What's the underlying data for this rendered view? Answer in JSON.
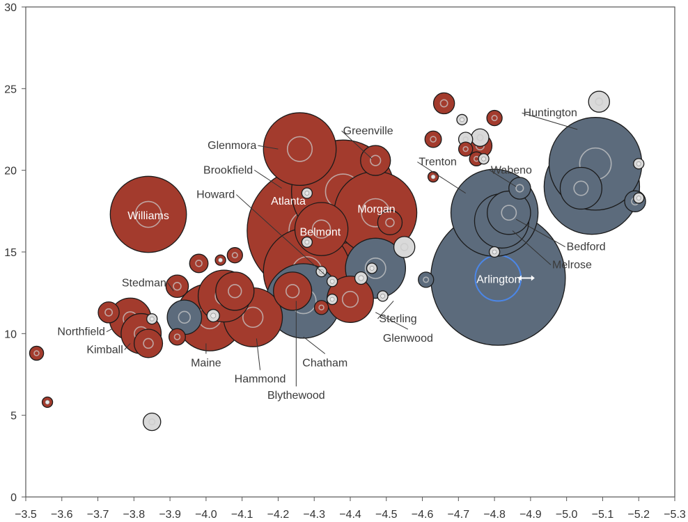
{
  "chart_data": {
    "type": "scatter",
    "subtype": "bubble",
    "title": "",
    "xlabel": "",
    "ylabel": "",
    "xlim": [
      -3.5,
      -5.3
    ],
    "ylim": [
      0,
      30
    ],
    "x_reversed": true,
    "x_ticks": [
      -3.5,
      -3.6,
      -3.7,
      -3.8,
      -3.9,
      -4.0,
      -4.1,
      -4.2,
      -4.3,
      -4.4,
      -4.5,
      -4.6,
      -4.7,
      -4.8,
      -4.9,
      -5.0,
      -5.1,
      -5.2,
      -5.3
    ],
    "x_tick_labels": [
      "−3.5",
      "−3.6",
      "−3.7",
      "−3.8",
      "−3.9",
      "−4.0",
      "−4.1",
      "−4.2",
      "−4.3",
      "−4.4",
      "−4.5",
      "−4.6",
      "−4.7",
      "−4.8",
      "−4.9",
      "−5.0",
      "−5.1",
      "−5.2",
      "−5.3"
    ],
    "y_ticks": [
      0,
      5,
      10,
      15,
      20,
      25,
      30
    ],
    "y_tick_labels": [
      "0",
      "5",
      "10",
      "15",
      "20",
      "25",
      "30"
    ],
    "grid": false,
    "legend": "none",
    "colors": {
      "red": "#a33b2d",
      "slate": "#5c6b7c",
      "light": "#d9d9d9",
      "highlight_ring": "#4a86e8"
    },
    "points": [
      {
        "name": "Atlanta",
        "x": -4.29,
        "y": 16.3,
        "size": 6.2,
        "color": "red"
      },
      {
        "name": "Greenville",
        "x": -4.38,
        "y": 18.7,
        "size": 4.0,
        "color": "red"
      },
      {
        "name": "Glenmora",
        "x": -4.26,
        "y": 21.3,
        "size": 1.9,
        "color": "red"
      },
      {
        "name": "Morgan",
        "x": -4.47,
        "y": 17.4,
        "size": 2.5,
        "color": "red"
      },
      {
        "name": "Brookfield",
        "x": -4.28,
        "y": 18.6,
        "size": 0.01,
        "color": "light"
      },
      {
        "name": "Belmont",
        "x": -4.32,
        "y": 16.4,
        "size": 0.95,
        "color": "red"
      },
      {
        "name": "Howard",
        "x": -4.28,
        "y": 13.8,
        "size": 2.8,
        "color": "red"
      },
      {
        "name": "Williams",
        "x": -3.84,
        "y": 17.3,
        "size": 2.1,
        "color": "red"
      },
      {
        "name": "Stedman",
        "x": -3.92,
        "y": 12.9,
        "size": 0.12,
        "color": "red"
      },
      {
        "name": "Northfield",
        "x": -3.79,
        "y": 10.9,
        "size": 0.55,
        "color": "red"
      },
      {
        "name": "Kimball",
        "x": -3.82,
        "y": 10.0,
        "size": 0.5,
        "color": "red"
      },
      {
        "name": "Maine",
        "x": -4.01,
        "y": 11.0,
        "size": 1.6,
        "color": "red"
      },
      {
        "name": "Hammond",
        "x": -4.13,
        "y": 11.0,
        "size": 1.2,
        "color": "red"
      },
      {
        "name": "Blythewood",
        "x": -4.24,
        "y": 12.6,
        "size": 0.45,
        "color": "red"
      },
      {
        "name": "Chatham",
        "x": -4.27,
        "y": 12.0,
        "size": 2.0,
        "color": "slate"
      },
      {
        "name": "Glenwood",
        "x": -4.4,
        "y": 12.1,
        "size": 0.7,
        "color": "red"
      },
      {
        "name": "Sterling",
        "x": -4.47,
        "y": 14.0,
        "size": 1.25,
        "color": "slate"
      },
      {
        "name": "Trenton",
        "x": -4.8,
        "y": 17.4,
        "size": 2.8,
        "color": "slate"
      },
      {
        "name": "Wabeno",
        "x": -4.87,
        "y": 18.9,
        "size": 0.11,
        "color": "slate"
      },
      {
        "name": "Bedford",
        "x": -4.84,
        "y": 17.4,
        "size": 0.6,
        "color": "slate"
      },
      {
        "name": "Melrose",
        "x": -4.82,
        "y": 16.9,
        "size": 1.0,
        "color": "slate"
      },
      {
        "name": "Arlington",
        "x": -4.81,
        "y": 13.4,
        "size": 7.0,
        "color": "slate",
        "highlighted": true
      },
      {
        "name": "Huntington",
        "x": -5.08,
        "y": 20.4,
        "size": 3.2,
        "color": "slate"
      },
      {
        "name": "",
        "x": -5.07,
        "y": 19.0,
        "size": 3.4,
        "color": "slate"
      },
      {
        "name": "",
        "x": -5.04,
        "y": 18.9,
        "size": 0.55,
        "color": "slate"
      },
      {
        "name": "",
        "x": -5.19,
        "y": 18.1,
        "size": 0.1,
        "color": "slate"
      },
      {
        "name": "",
        "x": -5.2,
        "y": 20.4,
        "size": 0.01,
        "color": "light"
      },
      {
        "name": "",
        "x": -5.2,
        "y": 18.3,
        "size": 0.01,
        "color": "light"
      },
      {
        "name": "",
        "x": -5.09,
        "y": 24.2,
        "size": 0.1,
        "color": "light"
      },
      {
        "name": "",
        "x": -4.66,
        "y": 24.1,
        "size": 0.1,
        "color": "red"
      },
      {
        "name": "",
        "x": -4.63,
        "y": 21.9,
        "size": 0.05,
        "color": "red"
      },
      {
        "name": "",
        "x": -4.8,
        "y": 23.2,
        "size": 0.04,
        "color": "red"
      },
      {
        "name": "",
        "x": -4.71,
        "y": 23.1,
        "size": 0.01,
        "color": "light"
      },
      {
        "name": "",
        "x": -4.72,
        "y": 21.9,
        "size": 0.03,
        "color": "light"
      },
      {
        "name": "",
        "x": -4.72,
        "y": 21.3,
        "size": 0.03,
        "color": "red"
      },
      {
        "name": "",
        "x": -4.76,
        "y": 21.5,
        "size": 0.14,
        "color": "red"
      },
      {
        "name": "",
        "x": -4.76,
        "y": 22.0,
        "size": 0.06,
        "color": "light"
      },
      {
        "name": "",
        "x": -4.75,
        "y": 20.7,
        "size": 0.03,
        "color": "red"
      },
      {
        "name": "",
        "x": -4.77,
        "y": 20.7,
        "size": 0.01,
        "color": "light"
      },
      {
        "name": "",
        "x": -4.63,
        "y": 19.6,
        "size": 0.01,
        "color": "red"
      },
      {
        "name": "",
        "x": -4.47,
        "y": 20.6,
        "size": 0.25,
        "color": "red"
      },
      {
        "name": "",
        "x": -4.51,
        "y": 16.8,
        "size": 0.15,
        "color": "red"
      },
      {
        "name": "",
        "x": -4.55,
        "y": 15.3,
        "size": 0.1,
        "color": "light"
      },
      {
        "name": "",
        "x": -4.61,
        "y": 13.3,
        "size": 0.04,
        "color": "slate"
      },
      {
        "name": "",
        "x": -4.8,
        "y": 15.0,
        "size": 0.01,
        "color": "light"
      },
      {
        "name": "",
        "x": -4.46,
        "y": 14.0,
        "size": 0.01,
        "color": "light"
      },
      {
        "name": "",
        "x": -4.43,
        "y": 13.4,
        "size": 0.02,
        "color": "light"
      },
      {
        "name": "",
        "x": -4.49,
        "y": 12.3,
        "size": 0.01,
        "color": "light"
      },
      {
        "name": "",
        "x": -4.28,
        "y": 15.6,
        "size": 0.01,
        "color": "light"
      },
      {
        "name": "",
        "x": -4.32,
        "y": 13.8,
        "size": 0.01,
        "color": "light"
      },
      {
        "name": "",
        "x": -4.35,
        "y": 13.2,
        "size": 0.01,
        "color": "light"
      },
      {
        "name": "",
        "x": -4.35,
        "y": 12.1,
        "size": 0.01,
        "color": "light"
      },
      {
        "name": "",
        "x": -4.32,
        "y": 11.6,
        "size": 0.03,
        "color": "red"
      },
      {
        "name": "",
        "x": -4.08,
        "y": 14.8,
        "size": 0.04,
        "color": "red"
      },
      {
        "name": "",
        "x": -4.04,
        "y": 14.5,
        "size": 0.01,
        "color": "red"
      },
      {
        "name": "",
        "x": -3.98,
        "y": 14.3,
        "size": 0.07,
        "color": "red"
      },
      {
        "name": "",
        "x": -4.05,
        "y": 12.3,
        "size": 0.9,
        "color": "red"
      },
      {
        "name": "",
        "x": -4.08,
        "y": 12.6,
        "size": 0.45,
        "color": "red"
      },
      {
        "name": "",
        "x": -3.94,
        "y": 11.0,
        "size": 0.35,
        "color": "slate"
      },
      {
        "name": "",
        "x": -4.02,
        "y": 11.1,
        "size": 0.02,
        "color": "light"
      },
      {
        "name": "",
        "x": -3.85,
        "y": 10.9,
        "size": 0.01,
        "color": "light"
      },
      {
        "name": "",
        "x": -3.92,
        "y": 9.8,
        "size": 0.05,
        "color": "red"
      },
      {
        "name": "",
        "x": -3.73,
        "y": 11.3,
        "size": 0.1,
        "color": "red"
      },
      {
        "name": "",
        "x": -3.84,
        "y": 9.4,
        "size": 0.22,
        "color": "red"
      },
      {
        "name": "",
        "x": -3.53,
        "y": 8.8,
        "size": 0.03,
        "color": "red"
      },
      {
        "name": "",
        "x": -3.56,
        "y": 5.8,
        "size": 0.01,
        "color": "red"
      },
      {
        "name": "",
        "x": -3.85,
        "y": 4.6,
        "size": 0.06,
        "color": "light"
      }
    ],
    "labels": [
      {
        "text": "Greenville",
        "x": -4.38,
        "y": 22.2,
        "anchor": "start",
        "pointer": [
          -4.46,
          20.7
        ]
      },
      {
        "text": "Glenmora",
        "x": -4.14,
        "y": 21.3,
        "anchor": "end",
        "pointer": [
          -4.2,
          21.3
        ]
      },
      {
        "text": "Brookfield",
        "x": -4.13,
        "y": 19.8,
        "anchor": "end",
        "pointer": [
          -4.21,
          18.9
        ]
      },
      {
        "text": "Howard",
        "x": -4.08,
        "y": 18.3,
        "anchor": "end",
        "pointer": [
          -4.33,
          13.6
        ]
      },
      {
        "text": "Atlanta",
        "x": -4.18,
        "y": 17.9,
        "anchor": "start",
        "inside": true
      },
      {
        "text": "Morgan",
        "x": -4.42,
        "y": 17.4,
        "anchor": "start",
        "inside": true
      },
      {
        "text": "Belmont",
        "x": -4.26,
        "y": 16.0,
        "anchor": "start",
        "inside": true
      },
      {
        "text": "Williams",
        "x": -3.84,
        "y": 17.0,
        "anchor": "middle",
        "inside": true
      },
      {
        "text": "Trenton",
        "x": -4.59,
        "y": 20.3,
        "anchor": "start",
        "pointer": [
          -4.72,
          18.6
        ]
      },
      {
        "text": "Wabeno",
        "x": -4.79,
        "y": 19.8,
        "anchor": "start",
        "pointer": [
          -4.86,
          19.0
        ]
      },
      {
        "text": "Huntington",
        "x": -4.88,
        "y": 23.3,
        "anchor": "start",
        "pointer": [
          -5.03,
          22.5
        ]
      },
      {
        "text": "Bedford",
        "x": -5.0,
        "y": 15.1,
        "anchor": "start",
        "pointer": [
          -4.86,
          17.0
        ]
      },
      {
        "text": "Melrose",
        "x": -4.96,
        "y": 14.0,
        "anchor": "start",
        "pointer": [
          -4.85,
          16.3
        ]
      },
      {
        "text": "Arlington",
        "x": -4.75,
        "y": 13.1,
        "anchor": "start",
        "inside": true
      },
      {
        "text": "Stedman",
        "x": -3.89,
        "y": 12.9,
        "anchor": "end",
        "pointer": [
          -3.91,
          12.6
        ]
      },
      {
        "text": "Northfield",
        "x": -3.72,
        "y": 9.9,
        "anchor": "end",
        "pointer": [
          -3.74,
          10.3
        ]
      },
      {
        "text": "Kimball",
        "x": -3.77,
        "y": 8.8,
        "anchor": "end",
        "pointer": [
          -3.79,
          9.4
        ]
      },
      {
        "text": "Maine",
        "x": -4.0,
        "y": 8.0,
        "anchor": "middle",
        "pointer": [
          -4.0,
          9.4
        ]
      },
      {
        "text": "Hammond",
        "x": -4.15,
        "y": 7.0,
        "anchor": "middle",
        "pointer": [
          -4.14,
          9.7
        ]
      },
      {
        "text": "Blythewood",
        "x": -4.25,
        "y": 6.0,
        "anchor": "middle",
        "pointer": [
          -4.25,
          12.0
        ]
      },
      {
        "text": "Chatham",
        "x": -4.33,
        "y": 8.0,
        "anchor": "middle",
        "pointer": [
          -4.27,
          9.8
        ]
      },
      {
        "text": "Glenwood",
        "x": -4.56,
        "y": 9.5,
        "anchor": "middle",
        "pointer": [
          -4.47,
          11.3
        ]
      },
      {
        "text": "Sterling",
        "x": -4.48,
        "y": 10.7,
        "anchor": "start",
        "pointer": [
          -4.52,
          12.0
        ]
      }
    ]
  }
}
